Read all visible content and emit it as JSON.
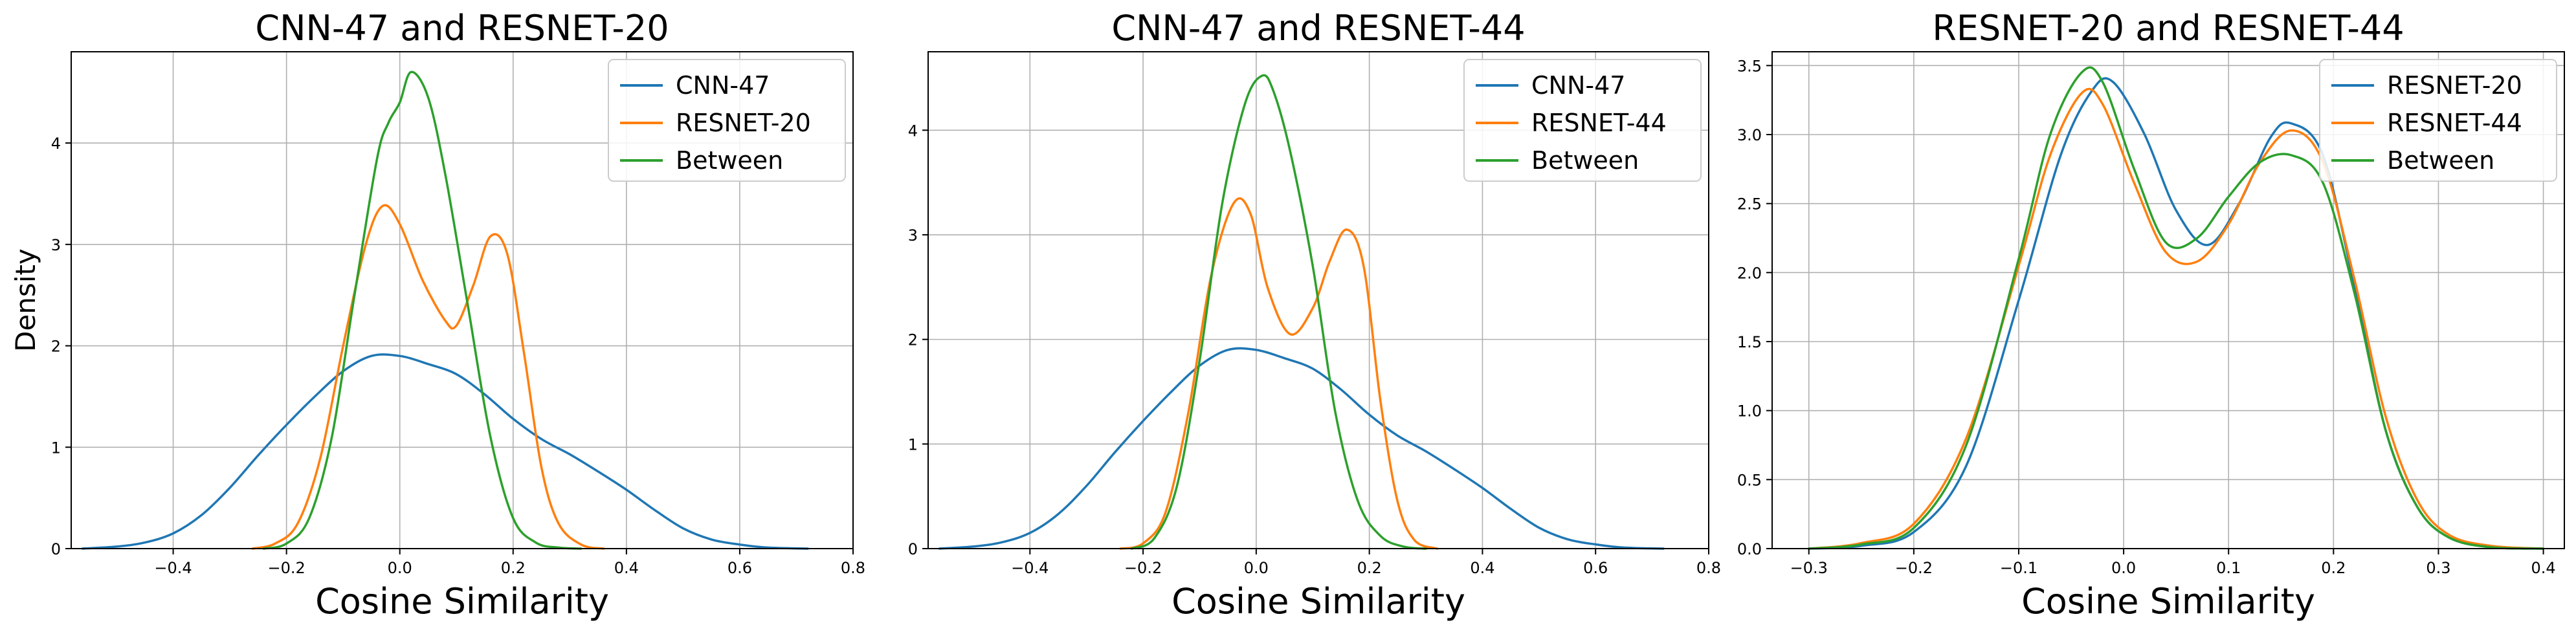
{
  "chart_data": [
    {
      "type": "line",
      "title": "CNN-47 and RESNET-20",
      "xlabel": "Cosine Similarity",
      "ylabel": "Density",
      "xlim": [
        -0.58,
        0.8
      ],
      "ylim": [
        0,
        4.9
      ],
      "xticks": [
        -0.4,
        -0.2,
        0.0,
        0.2,
        0.4,
        0.6,
        0.8
      ],
      "xtick_labels": [
        "−0.4",
        "−0.2",
        "0.0",
        "0.2",
        "0.4",
        "0.6",
        "0.8"
      ],
      "yticks": [
        0,
        1,
        2,
        3,
        4
      ],
      "ytick_labels": [
        "0",
        "1",
        "2",
        "3",
        "4"
      ],
      "grid": true,
      "legend_position": "top-right",
      "series": [
        {
          "name": "CNN-47",
          "color": "#1f77b4",
          "x": [
            -0.56,
            -0.5,
            -0.45,
            -0.4,
            -0.35,
            -0.3,
            -0.25,
            -0.2,
            -0.15,
            -0.1,
            -0.05,
            0.0,
            0.05,
            0.1,
            0.15,
            0.2,
            0.25,
            0.3,
            0.35,
            0.4,
            0.45,
            0.5,
            0.55,
            0.6,
            0.65,
            0.72
          ],
          "y": [
            0.0,
            0.02,
            0.06,
            0.15,
            0.33,
            0.6,
            0.92,
            1.22,
            1.5,
            1.75,
            1.9,
            1.9,
            1.82,
            1.72,
            1.52,
            1.28,
            1.08,
            0.93,
            0.76,
            0.58,
            0.38,
            0.2,
            0.09,
            0.04,
            0.01,
            0.0
          ]
        },
        {
          "name": "RESNET-20",
          "color": "#ff7f0e",
          "x": [
            -0.26,
            -0.22,
            -0.18,
            -0.14,
            -0.1,
            -0.06,
            -0.03,
            0.0,
            0.04,
            0.08,
            0.1,
            0.13,
            0.16,
            0.19,
            0.22,
            0.25,
            0.28,
            0.32,
            0.36
          ],
          "y": [
            0.0,
            0.05,
            0.25,
            0.9,
            2.0,
            3.0,
            3.38,
            3.2,
            2.65,
            2.25,
            2.2,
            2.6,
            3.08,
            2.9,
            1.9,
            0.8,
            0.25,
            0.04,
            0.0
          ]
        },
        {
          "name": "Between",
          "color": "#2ca02c",
          "x": [
            -0.24,
            -0.2,
            -0.16,
            -0.12,
            -0.08,
            -0.04,
            -0.02,
            0.0,
            0.02,
            0.05,
            0.08,
            0.12,
            0.16,
            0.2,
            0.24,
            0.28,
            0.32
          ],
          "y": [
            0.0,
            0.05,
            0.3,
            1.1,
            2.5,
            3.85,
            4.2,
            4.4,
            4.7,
            4.45,
            3.7,
            2.4,
            1.1,
            0.3,
            0.06,
            0.01,
            0.0
          ]
        }
      ]
    },
    {
      "type": "line",
      "title": "CNN-47 and RESNET-44",
      "xlabel": "Cosine Similarity",
      "ylabel": "",
      "xlim": [
        -0.58,
        0.8
      ],
      "ylim": [
        0,
        4.75
      ],
      "xticks": [
        -0.4,
        -0.2,
        0.0,
        0.2,
        0.4,
        0.6,
        0.8
      ],
      "xtick_labels": [
        "−0.4",
        "−0.2",
        "0.0",
        "0.2",
        "0.4",
        "0.6",
        "0.8"
      ],
      "yticks": [
        0,
        1,
        2,
        3,
        4
      ],
      "ytick_labels": [
        "0",
        "1",
        "2",
        "3",
        "4"
      ],
      "grid": true,
      "legend_position": "top-right",
      "series": [
        {
          "name": "CNN-47",
          "color": "#1f77b4",
          "x": [
            -0.56,
            -0.5,
            -0.45,
            -0.4,
            -0.35,
            -0.3,
            -0.25,
            -0.2,
            -0.15,
            -0.1,
            -0.05,
            0.0,
            0.05,
            0.1,
            0.15,
            0.2,
            0.25,
            0.3,
            0.35,
            0.4,
            0.45,
            0.5,
            0.55,
            0.6,
            0.65,
            0.72
          ],
          "y": [
            0.0,
            0.02,
            0.06,
            0.15,
            0.33,
            0.6,
            0.92,
            1.22,
            1.5,
            1.75,
            1.9,
            1.9,
            1.82,
            1.72,
            1.52,
            1.28,
            1.08,
            0.93,
            0.76,
            0.58,
            0.38,
            0.2,
            0.09,
            0.04,
            0.01,
            0.0
          ]
        },
        {
          "name": "RESNET-44",
          "color": "#ff7f0e",
          "x": [
            -0.24,
            -0.2,
            -0.16,
            -0.12,
            -0.08,
            -0.04,
            -0.01,
            0.02,
            0.06,
            0.1,
            0.13,
            0.16,
            0.19,
            0.22,
            0.25,
            0.28,
            0.32
          ],
          "y": [
            0.0,
            0.05,
            0.35,
            1.3,
            2.6,
            3.3,
            3.2,
            2.5,
            2.05,
            2.3,
            2.75,
            3.05,
            2.7,
            1.4,
            0.45,
            0.08,
            0.0
          ]
        },
        {
          "name": "Between",
          "color": "#2ca02c",
          "x": [
            -0.22,
            -0.18,
            -0.14,
            -0.1,
            -0.06,
            -0.02,
            0.01,
            0.03,
            0.06,
            0.1,
            0.14,
            0.18,
            0.22,
            0.26,
            0.3
          ],
          "y": [
            0.0,
            0.1,
            0.6,
            1.8,
            3.3,
            4.25,
            4.52,
            4.38,
            3.8,
            2.7,
            1.3,
            0.45,
            0.12,
            0.02,
            0.0
          ]
        }
      ]
    },
    {
      "type": "line",
      "title": "RESNET-20 and RESNET-44",
      "xlabel": "Cosine Similarity",
      "ylabel": "",
      "xlim": [
        -0.335,
        0.42
      ],
      "ylim": [
        0,
        3.6
      ],
      "xticks": [
        -0.3,
        -0.2,
        -0.1,
        0.0,
        0.1,
        0.2,
        0.3,
        0.4
      ],
      "xtick_labels": [
        "−0.3",
        "−0.2",
        "−0.1",
        "0.0",
        "0.1",
        "0.2",
        "0.3",
        "0.4"
      ],
      "yticks": [
        0.0,
        0.5,
        1.0,
        1.5,
        2.0,
        2.5,
        3.0,
        3.5
      ],
      "ytick_labels": [
        "0.0",
        "0.5",
        "1.0",
        "1.5",
        "2.0",
        "2.5",
        "3.0",
        "3.5"
      ],
      "grid": true,
      "legend_position": "top-right",
      "series": [
        {
          "name": "RESNET-20",
          "color": "#1f77b4",
          "x": [
            -0.3,
            -0.25,
            -0.2,
            -0.15,
            -0.1,
            -0.06,
            -0.03,
            -0.01,
            0.02,
            0.05,
            0.08,
            0.11,
            0.14,
            0.16,
            0.19,
            0.22,
            0.25,
            0.28,
            0.31,
            0.35,
            0.4
          ],
          "y": [
            0.0,
            0.02,
            0.12,
            0.6,
            1.8,
            2.85,
            3.32,
            3.38,
            3.0,
            2.45,
            2.2,
            2.5,
            2.98,
            3.08,
            2.85,
            1.9,
            0.85,
            0.3,
            0.08,
            0.01,
            0.0
          ]
        },
        {
          "name": "RESNET-44",
          "color": "#ff7f0e",
          "x": [
            -0.3,
            -0.25,
            -0.2,
            -0.15,
            -0.1,
            -0.07,
            -0.04,
            -0.02,
            0.01,
            0.04,
            0.07,
            0.1,
            0.13,
            0.16,
            0.19,
            0.22,
            0.25,
            0.28,
            0.31,
            0.35,
            0.4
          ],
          "y": [
            0.0,
            0.04,
            0.18,
            0.8,
            2.05,
            2.85,
            3.3,
            3.22,
            2.65,
            2.15,
            2.08,
            2.35,
            2.8,
            3.03,
            2.8,
            1.95,
            0.95,
            0.35,
            0.1,
            0.02,
            0.0
          ]
        },
        {
          "name": "Between",
          "color": "#2ca02c",
          "x": [
            -0.3,
            -0.25,
            -0.2,
            -0.15,
            -0.1,
            -0.07,
            -0.04,
            -0.02,
            0.01,
            0.04,
            0.07,
            0.1,
            0.13,
            0.16,
            0.19,
            0.22,
            0.25,
            0.28,
            0.31,
            0.35,
            0.4
          ],
          "y": [
            0.0,
            0.03,
            0.15,
            0.75,
            2.1,
            3.0,
            3.45,
            3.38,
            2.75,
            2.22,
            2.25,
            2.55,
            2.8,
            2.85,
            2.65,
            1.85,
            0.85,
            0.3,
            0.08,
            0.01,
            0.0
          ]
        }
      ]
    }
  ]
}
